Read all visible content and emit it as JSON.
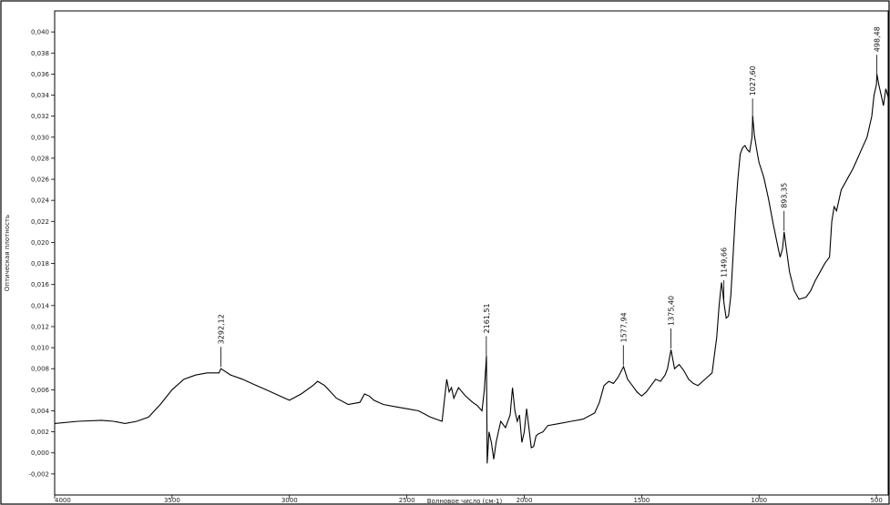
{
  "chart_data": {
    "type": "line",
    "title": "",
    "xlabel": "Волновое число (см-1)",
    "ylabel": "Оптическая плотность",
    "xlim": [
      4000,
      450
    ],
    "ylim": [
      -0.004,
      0.042
    ],
    "x_ticks": [
      "4000",
      "3500",
      "3000",
      "2500",
      "2000",
      "1500",
      "1000",
      "500"
    ],
    "y_ticks": [
      "-0,002",
      "0,000",
      "0,002",
      "0,004",
      "0,006",
      "0,008",
      "0,010",
      "0,012",
      "0,014",
      "0,016",
      "0,018",
      "0,020",
      "0,022",
      "0,024",
      "0,026",
      "0,028",
      "0,030",
      "0,032",
      "0,034",
      "0,036",
      "0,038",
      "0,040"
    ],
    "peak_labels": [
      {
        "x": 3292.12,
        "label": "3292,12"
      },
      {
        "x": 2161.51,
        "label": "2161,51"
      },
      {
        "x": 1577.94,
        "label": "1577,94"
      },
      {
        "x": 1375.4,
        "label": "1375,40"
      },
      {
        "x": 1149.66,
        "label": "1149,66"
      },
      {
        "x": 1027.6,
        "label": "1027,60"
      },
      {
        "x": 893.35,
        "label": "893,35"
      },
      {
        "x": 498.48,
        "label": "498,48"
      }
    ],
    "series": [
      {
        "x": [
          4000,
          3900,
          3800,
          3750,
          3700,
          3650,
          3600,
          3550,
          3500,
          3450,
          3400,
          3350,
          3300,
          3292,
          3250,
          3200,
          3150,
          3100,
          3050,
          3000,
          2950,
          2900,
          2880,
          2850,
          2800,
          2750,
          2700,
          2680,
          2660,
          2640,
          2600,
          2550,
          2500,
          2450,
          2400,
          2350,
          2330,
          2320,
          2310,
          2300,
          2280,
          2250,
          2220,
          2200,
          2180,
          2170,
          2161,
          2158,
          2150,
          2140,
          2130,
          2120,
          2110,
          2100,
          2080,
          2060,
          2050,
          2040,
          2030,
          2020,
          2010,
          2000,
          1990,
          1980,
          1970,
          1960,
          1950,
          1940,
          1920,
          1900,
          1850,
          1800,
          1750,
          1700,
          1680,
          1660,
          1640,
          1620,
          1600,
          1577,
          1560,
          1540,
          1520,
          1500,
          1480,
          1460,
          1440,
          1420,
          1400,
          1390,
          1375,
          1360,
          1340,
          1320,
          1300,
          1280,
          1260,
          1240,
          1220,
          1200,
          1180,
          1170,
          1160,
          1155,
          1149,
          1140,
          1130,
          1120,
          1110,
          1100,
          1090,
          1080,
          1070,
          1060,
          1050,
          1040,
          1030,
          1027,
          1020,
          1010,
          1000,
          980,
          960,
          940,
          920,
          910,
          900,
          893,
          885,
          870,
          850,
          830,
          800,
          780,
          760,
          740,
          720,
          700,
          690,
          680,
          670,
          650,
          620,
          600,
          580,
          560,
          540,
          520,
          510,
          500,
          498,
          490,
          480,
          470,
          460,
          450
        ],
        "y": [
          0.0028,
          0.003,
          0.0031,
          0.003,
          0.0028,
          0.003,
          0.0034,
          0.0046,
          0.006,
          0.007,
          0.0074,
          0.0076,
          0.0076,
          0.008,
          0.0074,
          0.007,
          0.0065,
          0.006,
          0.0055,
          0.005,
          0.0056,
          0.0064,
          0.0068,
          0.0064,
          0.0052,
          0.0046,
          0.0048,
          0.0056,
          0.0054,
          0.005,
          0.0046,
          0.0044,
          0.0042,
          0.004,
          0.0034,
          0.003,
          0.007,
          0.0058,
          0.0062,
          0.0052,
          0.0062,
          0.0054,
          0.0048,
          0.0045,
          0.004,
          0.006,
          0.0092,
          -0.001,
          0.002,
          0.001,
          -0.0006,
          0.001,
          0.002,
          0.003,
          0.0024,
          0.0036,
          0.0062,
          0.004,
          0.003,
          0.0036,
          0.001,
          0.002,
          0.0042,
          0.0024,
          0.0005,
          0.0006,
          0.0016,
          0.0018,
          0.002,
          0.0026,
          0.0028,
          0.003,
          0.0032,
          0.0038,
          0.0048,
          0.0064,
          0.0068,
          0.0066,
          0.0072,
          0.0082,
          0.007,
          0.0064,
          0.0058,
          0.0054,
          0.0058,
          0.0064,
          0.007,
          0.0068,
          0.0074,
          0.008,
          0.0098,
          0.008,
          0.0084,
          0.0078,
          0.007,
          0.0066,
          0.0064,
          0.0068,
          0.0072,
          0.0076,
          0.011,
          0.014,
          0.0162,
          0.0154,
          0.0142,
          0.0128,
          0.013,
          0.015,
          0.019,
          0.023,
          0.026,
          0.0284,
          0.029,
          0.0292,
          0.0288,
          0.0286,
          0.03,
          0.032,
          0.0302,
          0.0288,
          0.0276,
          0.0262,
          0.0242,
          0.0218,
          0.0196,
          0.0186,
          0.0194,
          0.021,
          0.0196,
          0.0172,
          0.0154,
          0.0146,
          0.0148,
          0.0154,
          0.0164,
          0.0172,
          0.018,
          0.0186,
          0.022,
          0.0234,
          0.023,
          0.025,
          0.0262,
          0.027,
          0.028,
          0.029,
          0.03,
          0.032,
          0.034,
          0.035,
          0.036,
          0.035,
          0.034,
          0.033,
          0.0346,
          0.0338
        ]
      }
    ]
  }
}
